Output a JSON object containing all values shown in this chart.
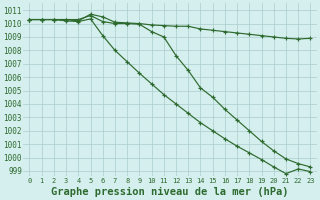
{
  "title": "Graphe pression niveau de la mer (hPa)",
  "x": [
    0,
    1,
    2,
    3,
    4,
    5,
    6,
    7,
    8,
    9,
    10,
    11,
    12,
    13,
    14,
    15,
    16,
    17,
    18,
    19,
    20,
    21,
    22,
    23
  ],
  "line_upper": [
    1010.3,
    1010.3,
    1010.3,
    1010.3,
    1010.2,
    1010.7,
    1010.5,
    1010.1,
    1010.05,
    1010.0,
    1009.9,
    1009.85,
    1009.8,
    1009.8,
    1009.6,
    1009.5,
    1009.4,
    1009.3,
    1009.2,
    1009.1,
    1009.0,
    1008.9,
    1008.85,
    1008.9
  ],
  "line_mid": [
    1010.3,
    1010.3,
    1010.3,
    1010.3,
    1010.3,
    1010.6,
    1010.15,
    1010.0,
    1010.0,
    1009.95,
    1009.4,
    1009.0,
    1007.6,
    1006.5,
    1005.2,
    1004.5,
    1003.6,
    1002.8,
    1002.0,
    1001.2,
    1000.5,
    999.9,
    999.55,
    999.3
  ],
  "line_lower": [
    1010.3,
    1010.3,
    1010.3,
    1010.2,
    1010.15,
    1010.35,
    1009.1,
    1008.0,
    1007.15,
    1006.3,
    1005.5,
    1004.7,
    1004.0,
    1003.3,
    1002.6,
    1002.0,
    1001.4,
    1000.85,
    1000.35,
    999.85,
    999.3,
    998.8,
    999.15,
    998.95
  ],
  "line_color": "#2d6a2d",
  "bg_color": "#d5eeee",
  "grid_major_color": "#aacccc",
  "grid_minor_color": "#c8e8e8",
  "ylim_min": 998.6,
  "ylim_max": 1011.5,
  "yticks": [
    999,
    1000,
    1001,
    1002,
    1003,
    1004,
    1005,
    1006,
    1007,
    1008,
    1009,
    1010,
    1011
  ],
  "ytick_fontsize": 5.5,
  "xtick_fontsize": 5.0,
  "title_fontsize": 7.5,
  "lw": 0.85,
  "ms": 3.5
}
